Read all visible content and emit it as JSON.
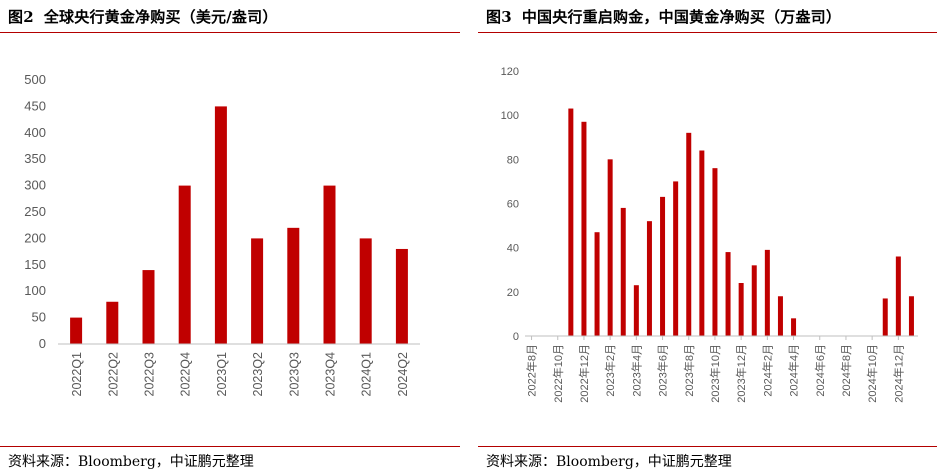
{
  "charts": [
    {
      "fig_label": "图2",
      "title": "全球央行黄金净购买（美元/盎司）",
      "source": "资料来源：Bloomberg，中证鹏元整理"
    },
    {
      "fig_label": "图3",
      "title": "中国央行重启购金，中国黄金净购买（万盎司）",
      "source": "资料来源：Bloomberg，中证鹏元整理"
    }
  ],
  "colors": {
    "bar": "#c00000",
    "rule": "#b30000",
    "axis": "#bfbfbf",
    "tick_text": "#595959"
  },
  "chart_data": [
    {
      "type": "bar",
      "title": "全球央行黄金净购买（美元/盎司）",
      "categories": [
        "2022Q1",
        "2022Q2",
        "2022Q3",
        "2022Q4",
        "2023Q1",
        "2023Q2",
        "2023Q3",
        "2023Q4",
        "2024Q1",
        "2024Q2"
      ],
      "values": [
        50,
        80,
        140,
        300,
        450,
        200,
        220,
        300,
        200,
        180
      ],
      "ylim": [
        0,
        500
      ],
      "yticks": [
        0,
        50,
        100,
        150,
        200,
        250,
        300,
        350,
        400,
        450,
        500
      ],
      "grid": false,
      "xlabel": "",
      "ylabel": ""
    },
    {
      "type": "bar",
      "title": "中国央行重启购金，中国黄金净购买（万盎司）",
      "categories": [
        "2022年8月",
        "2022年9月",
        "2022年10月",
        "2022年11月",
        "2022年12月",
        "2023年1月",
        "2023年2月",
        "2023年3月",
        "2023年4月",
        "2023年5月",
        "2023年6月",
        "2023年7月",
        "2023年8月",
        "2023年9月",
        "2023年10月",
        "2023年11月",
        "2023年12月",
        "2024年1月",
        "2024年2月",
        "2024年3月",
        "2024年4月",
        "2024年5月",
        "2024年6月",
        "2024年7月",
        "2024年8月",
        "2024年9月",
        "2024年10月",
        "2024年11月",
        "2024年12月",
        "2025年1月"
      ],
      "values": [
        0,
        0,
        0,
        103,
        97,
        47,
        80,
        58,
        23,
        52,
        63,
        70,
        92,
        84,
        76,
        38,
        24,
        32,
        39,
        18,
        8,
        0,
        0,
        0,
        0,
        0,
        0,
        17,
        36,
        18
      ],
      "tick_labels": [
        "2022年8月",
        "2022年10月",
        "2022年12月",
        "2023年2月",
        "2023年4月",
        "2023年6月",
        "2023年8月",
        "2023年10月",
        "2023年12月",
        "2024年2月",
        "2024年4月",
        "2024年6月",
        "2024年8月",
        "2024年10月",
        "2024年12月"
      ],
      "ylim": [
        0,
        120
      ],
      "yticks": [
        0,
        20,
        40,
        60,
        80,
        100,
        120
      ],
      "grid": false,
      "xlabel": "",
      "ylabel": ""
    }
  ]
}
